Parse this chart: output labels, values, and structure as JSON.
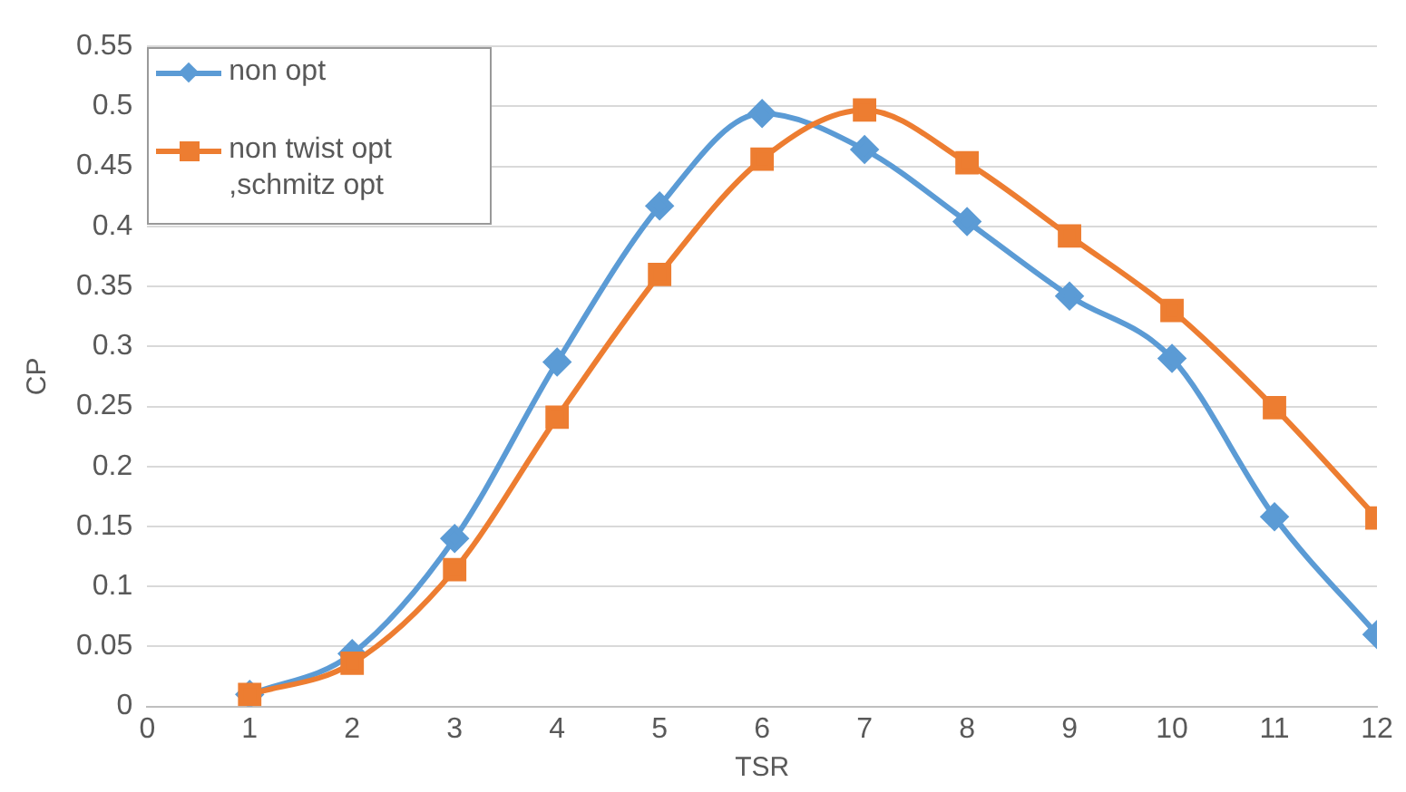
{
  "chart_data": {
    "type": "line",
    "xlabel": "TSR",
    "ylabel": "CP",
    "x": [
      1,
      2,
      3,
      4,
      5,
      6,
      7,
      8,
      9,
      10,
      11,
      12
    ],
    "series": [
      {
        "name": "non opt",
        "color": "#5b9bd5",
        "marker": "diamond",
        "values": [
          0.01,
          0.044,
          0.14,
          0.287,
          0.417,
          0.494,
          0.464,
          0.404,
          0.342,
          0.29,
          0.158,
          0.06
        ]
      },
      {
        "name": "non twist opt ,schmitz opt",
        "color": "#ed7d31",
        "marker": "square",
        "values": [
          0.01,
          0.036,
          0.114,
          0.241,
          0.36,
          0.456,
          0.497,
          0.453,
          0.392,
          0.33,
          0.249,
          0.157
        ]
      }
    ],
    "xlim": [
      0,
      12
    ],
    "xticks": [
      0,
      1,
      2,
      3,
      4,
      5,
      6,
      7,
      8,
      9,
      10,
      11,
      12
    ],
    "ylim": [
      0,
      0.55
    ],
    "yticks": [
      0,
      0.05,
      0.1,
      0.15,
      0.2,
      0.25,
      0.3,
      0.35,
      0.4,
      0.45,
      0.5,
      0.55
    ],
    "grid": "y",
    "legend": "top left"
  }
}
